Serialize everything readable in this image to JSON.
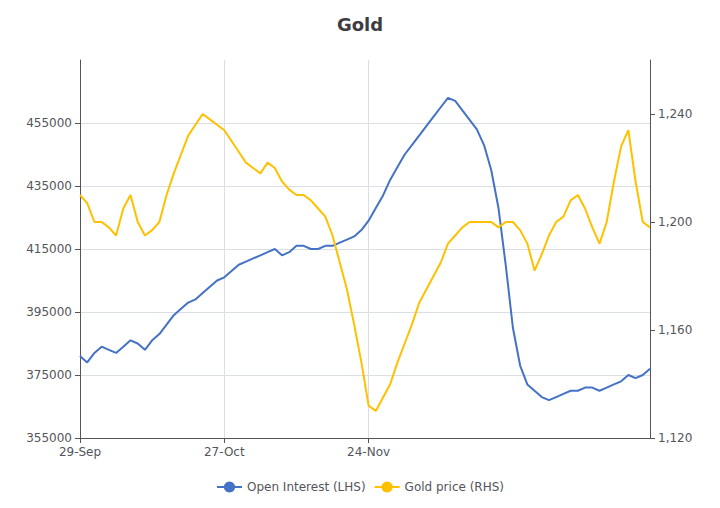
{
  "chart_data": {
    "type": "line",
    "title": "Gold",
    "categories": [
      "29-Sep",
      null,
      null,
      null,
      null,
      null,
      null,
      null,
      null,
      null,
      null,
      null,
      null,
      null,
      null,
      null,
      null,
      null,
      null,
      null,
      "27-Oct",
      null,
      null,
      null,
      null,
      null,
      null,
      null,
      null,
      null,
      null,
      null,
      null,
      null,
      null,
      null,
      null,
      null,
      null,
      null,
      "24-Nov",
      null,
      null,
      null,
      null,
      null,
      null,
      null,
      null,
      null,
      null,
      null,
      null,
      null,
      null,
      null,
      null,
      null,
      null,
      null,
      null,
      null,
      null,
      null,
      null,
      null,
      null,
      null,
      null,
      null,
      null,
      null,
      null,
      null,
      null,
      null,
      null,
      null,
      null,
      null
    ],
    "series": [
      {
        "name": "Open Interest (LHS)",
        "color": "#4472C4",
        "values": [
          381000,
          379000,
          382000,
          384000,
          383000,
          382000,
          384000,
          386000,
          385000,
          383000,
          386000,
          388000,
          391000,
          394000,
          396000,
          398000,
          399000,
          401000,
          403000,
          405000,
          406000,
          408000,
          410000,
          411000,
          412000,
          413000,
          414000,
          415000,
          413000,
          414000,
          416000,
          416000,
          415000,
          415000,
          416000,
          416000,
          417000,
          418000,
          419000,
          421000,
          424000,
          428000,
          432000,
          437000,
          441000,
          445000,
          448000,
          451000,
          454000,
          457000,
          460000,
          463000,
          462000,
          459000,
          456000,
          453000,
          448000,
          440000,
          428000,
          410000,
          390000,
          378000,
          372000,
          370000,
          368000,
          367000,
          368000,
          369000,
          370000,
          370000,
          371000,
          371000,
          370000,
          371000,
          372000,
          373000,
          375000,
          374000,
          375000,
          377000
        ]
      },
      {
        "name": "Gold price (RHS)",
        "color": "#FFC000",
        "axis": "y2",
        "values": [
          1210,
          1207,
          1200,
          1200,
          1198,
          1195,
          1205,
          1210,
          1200,
          1195,
          1197,
          1200,
          1210,
          1218,
          1225,
          1232,
          1236,
          1240,
          1238,
          1236,
          1234,
          1230,
          1226,
          1222,
          1220,
          1218,
          1222,
          1220,
          1215,
          1212,
          1210,
          1210,
          1208,
          1205,
          1202,
          1195,
          1185,
          1175,
          1162,
          1148,
          1132,
          1130,
          1135,
          1140,
          1148,
          1155,
          1162,
          1170,
          1175,
          1180,
          1185,
          1192,
          1195,
          1198,
          1200,
          1200,
          1200,
          1200,
          1198,
          1200,
          1200,
          1197,
          1192,
          1182,
          1188,
          1195,
          1200,
          1202,
          1208,
          1210,
          1205,
          1198,
          1192,
          1200,
          1215,
          1228,
          1234,
          1215,
          1200,
          1198
        ]
      }
    ],
    "ylim": [
      355000,
      475000
    ],
    "yticks": [
      355000,
      375000,
      395000,
      415000,
      435000,
      455000
    ],
    "y2lim": [
      1120,
      1260
    ],
    "y2ticks": [
      {
        "value": 1120,
        "label": "1,120"
      },
      {
        "value": 1160,
        "label": "1,160"
      },
      {
        "value": 1200,
        "label": "1,200"
      },
      {
        "value": 1240,
        "label": "1,240"
      }
    ],
    "grid": true,
    "legend": "bottom"
  }
}
